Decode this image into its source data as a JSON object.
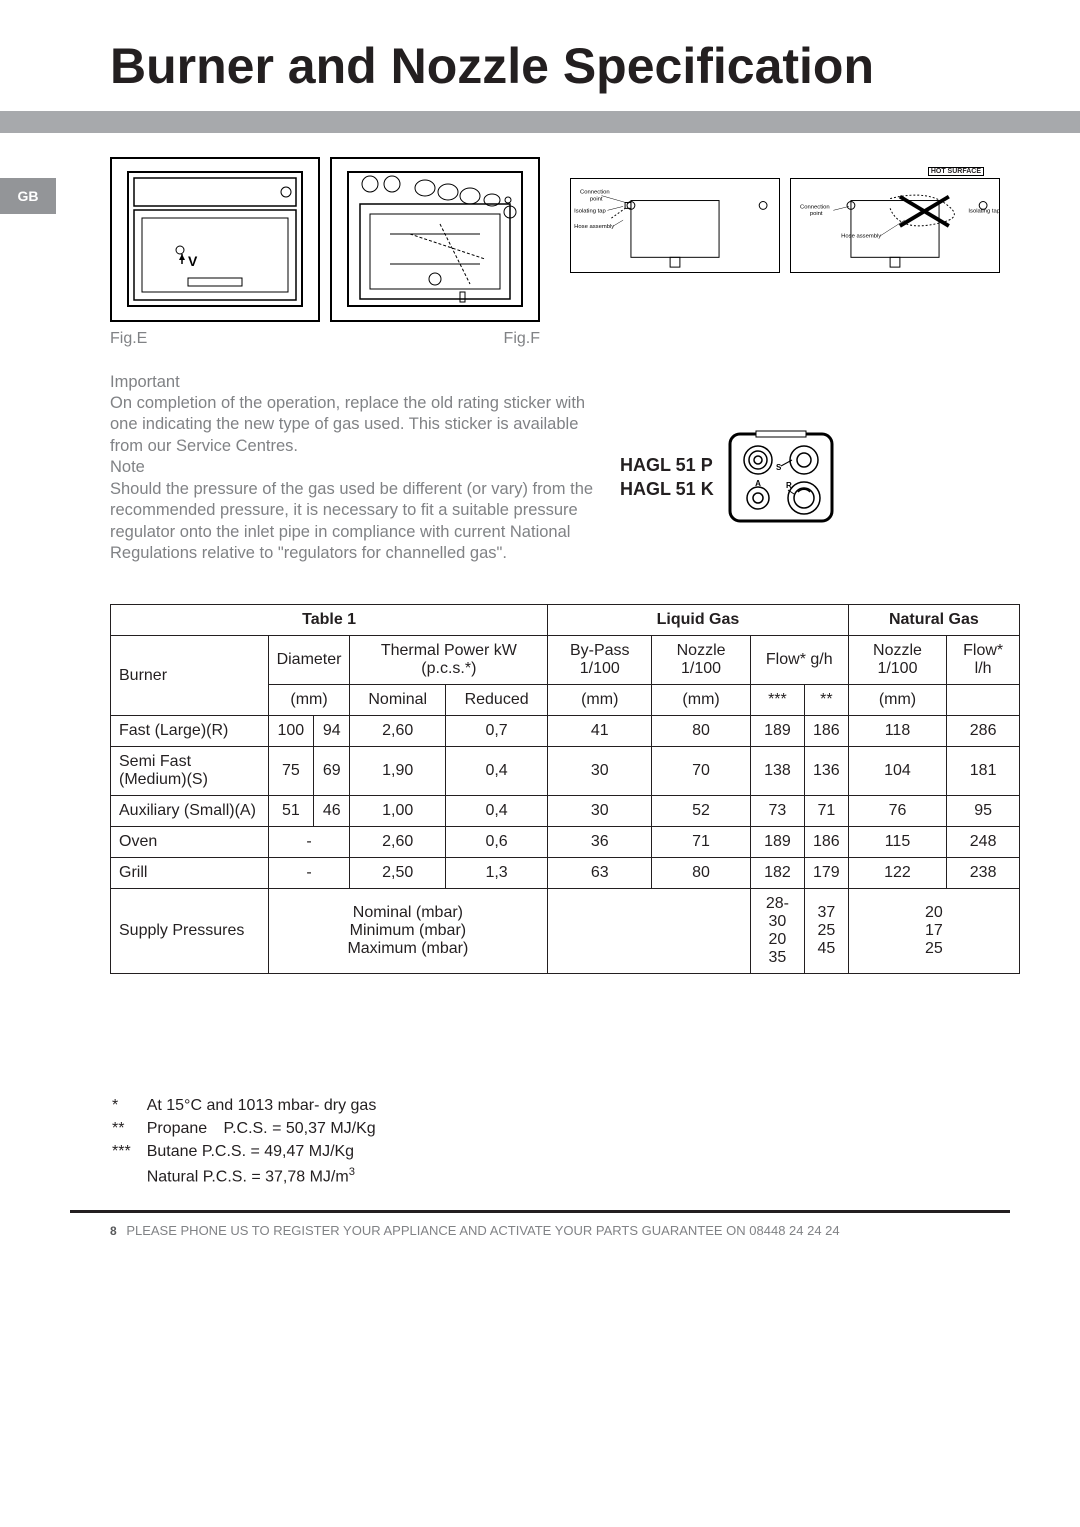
{
  "title": "Burner and Nozzle Specification",
  "tab": "GB",
  "figs": {
    "e": "Fig.E",
    "f": "Fig.F"
  },
  "diag": {
    "conn_point": "Connection point",
    "iso_tap": "Isolating tap",
    "hose": "Hose assembly",
    "hot": "HOT SURFACE"
  },
  "copy": {
    "important": "Important",
    "p1": "On completion of the operation, replace the old rating sticker with one indicating the new type of gas used. This sticker is available from our Service Centres.",
    "note": "Note",
    "p2": "Should the pressure of the gas used be different (or vary) from the recommended pressure, it is necessary to fit a suitable pressure regulator onto the inlet pipe in compliance with current National Regulations relative to \"regulators for channelled gas\"."
  },
  "models": {
    "a": "HAGL 51 P",
    "b": "HAGL 51 K"
  },
  "hob_labels": {
    "s": "S",
    "a": "A",
    "r": "R"
  },
  "table": {
    "label": "Table 1",
    "liquid": "Liquid Gas",
    "natural": "Natural Gas",
    "burner": "Burner",
    "diameter": "Diameter",
    "thermal": "Thermal Power kW (p.c.s.*)",
    "bypass": "By-Pass 1/100",
    "nozzle": "Nozzle 1/100",
    "flow_gh": "Flow* g/h",
    "flow_lh": "Flow* l/h",
    "mm": "(mm)",
    "nominal": "Nominal",
    "reduced": "Reduced",
    "stars3": "***",
    "stars2": "**",
    "rows": [
      {
        "name": "Fast (Large)(R)",
        "d1": "100",
        "d2": "94",
        "nom": "2,60",
        "red": "0,7",
        "bp": "41",
        "nz": "80",
        "f1": "189",
        "f2": "186",
        "nn": "118",
        "fl": "286"
      },
      {
        "name": "Semi Fast (Medium)(S)",
        "d1": "75",
        "d2": "69",
        "nom": "1,90",
        "red": "0,4",
        "bp": "30",
        "nz": "70",
        "f1": "138",
        "f2": "136",
        "nn": "104",
        "fl": "181"
      },
      {
        "name": "Auxiliary (Small)(A)",
        "d1": "51",
        "d2": "46",
        "nom": "1,00",
        "red": "0,4",
        "bp": "30",
        "nz": "52",
        "f1": "73",
        "f2": "71",
        "nn": "76",
        "fl": "95"
      },
      {
        "name": "Oven",
        "d1": "-",
        "d2": "",
        "nom": "2,60",
        "red": "0,6",
        "bp": "36",
        "nz": "71",
        "f1": "189",
        "f2": "186",
        "nn": "115",
        "fl": "248"
      },
      {
        "name": "Grill",
        "d1": "-",
        "d2": "",
        "nom": "2,50",
        "red": "1,3",
        "bp": "63",
        "nz": "80",
        "f1": "182",
        "f2": "179",
        "nn": "122",
        "fl": "238"
      }
    ],
    "supply": "Supply Pressures",
    "sp_labels": "Nominal (mbar)\nMinimum (mbar)\nMaximum (mbar)",
    "sp_c1": "28-30\n20\n35",
    "sp_c2": "37\n25\n45",
    "sp_ng": "20\n17\n25"
  },
  "footnotes": {
    "l1s": "*",
    "l1": "At 15°C and 1013 mbar- dry gas",
    "l2s": "**",
    "l2a": "Propane",
    "l2b": "P.C.S. = 50,37 MJ/Kg",
    "l3s": "***",
    "l3": "Butane  P.C.S. = 49,47 MJ/Kg",
    "l4": "Natural  P.C.S. = 37,78 MJ/m"
  },
  "footer": {
    "page": "8",
    "text": "PLEASE PHONE US TO REGISTER YOUR APPLIANCE  AND ACTIVATE YOUR PARTS GUARANTEE ON 08448 24 24 24"
  },
  "colors": {
    "grey_text": "#808285",
    "divider": "#a7a9ac",
    "tab": "#939598",
    "ink": "#231f20"
  }
}
